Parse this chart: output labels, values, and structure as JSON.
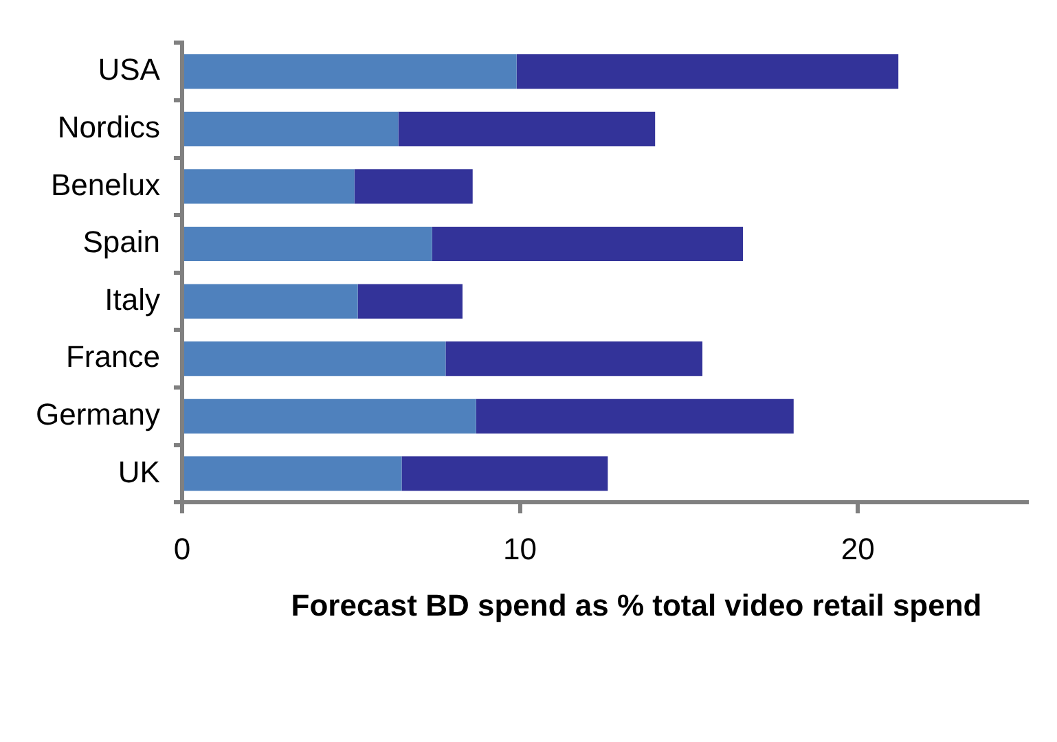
{
  "chart_data": {
    "type": "bar",
    "orientation": "horizontal",
    "stacked": true,
    "xlabel": "Forecast BD spend as % total video retail spend",
    "categories": [
      "USA",
      "Nordics",
      "Benelux",
      "Spain",
      "Italy",
      "France",
      "Germany",
      "UK"
    ],
    "series": [
      {
        "color": "#4f81bd",
        "values": [
          9.9,
          6.4,
          5.1,
          7.4,
          5.2,
          7.8,
          8.7,
          6.5
        ]
      },
      {
        "color": "#333399",
        "values": [
          11.3,
          7.6,
          3.5,
          9.2,
          3.1,
          7.6,
          9.4,
          6.1
        ]
      }
    ],
    "xlim": [
      0,
      25
    ],
    "xticks": [
      0,
      10,
      20
    ],
    "grid": false,
    "legend": false
  }
}
